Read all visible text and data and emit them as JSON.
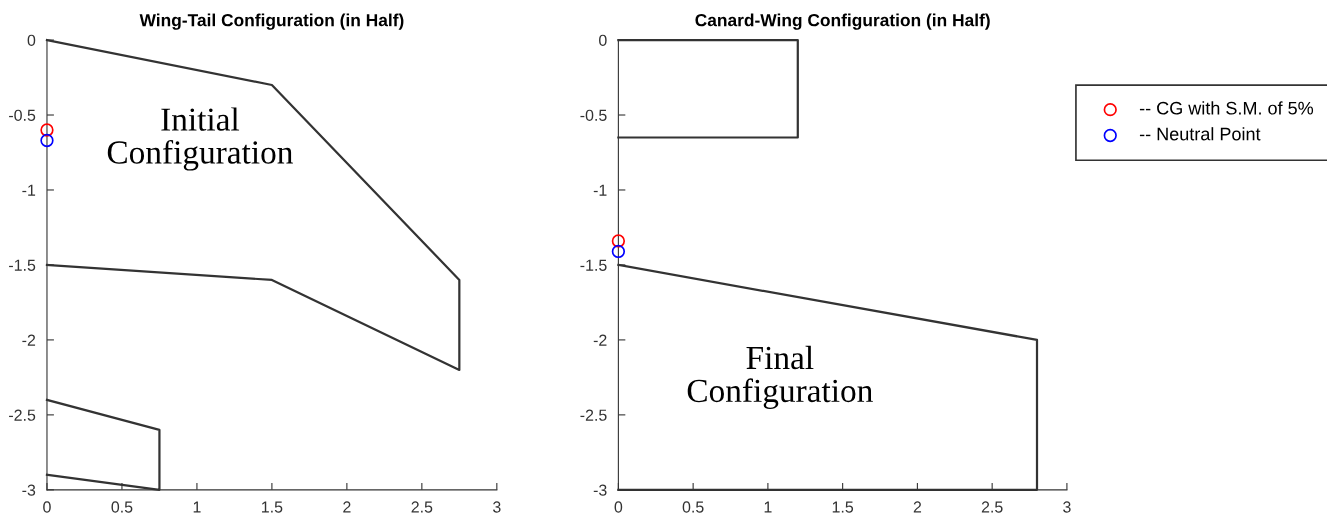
{
  "chart_data": [
    {
      "type": "line",
      "title": "Wing-Tail Configuration (in Half)",
      "xlim": [
        0,
        3
      ],
      "ylim": [
        -3,
        0
      ],
      "xticks": [
        0,
        0.5,
        1,
        1.5,
        2,
        2.5,
        3
      ],
      "yticks": [
        -3,
        -2.5,
        -2,
        -1.5,
        -1,
        -0.5,
        0
      ],
      "grid": false,
      "legend": false,
      "annotations": [
        "Initial\nConfiguration"
      ],
      "series": [
        {
          "color": "#333333",
          "x": [
            0,
            1.5,
            2.75,
            2.75,
            1.5,
            0
          ],
          "values": [
            0,
            -0.3,
            -1.6,
            -2.2,
            -1.6,
            -1.5
          ]
        },
        {
          "color": "#333333",
          "x": [
            0,
            0.75,
            0.75,
            0
          ],
          "values": [
            -2.4,
            -2.6,
            -3.0,
            -2.9
          ]
        },
        {
          "type": "scatter",
          "color": "#ff0000",
          "marker": "circle",
          "x": [
            0
          ],
          "values": [
            -0.6
          ]
        },
        {
          "type": "scatter",
          "color": "#0000ff",
          "marker": "circle",
          "x": [
            0
          ],
          "values": [
            -0.67
          ]
        }
      ]
    },
    {
      "type": "line",
      "title": "Canard-Wing Configuration (in Half)",
      "xlim": [
        0,
        3
      ],
      "ylim": [
        -3,
        0
      ],
      "xticks": [
        0,
        0.5,
        1,
        1.5,
        2,
        2.5,
        3
      ],
      "yticks": [
        -3,
        -2.5,
        -2,
        -1.5,
        -1,
        -0.5,
        0
      ],
      "grid": false,
      "legend": "top right",
      "annotations": [
        "Final\nConfiguration"
      ],
      "series": [
        {
          "color": "#333333",
          "x": [
            0,
            1.2,
            1.2,
            0
          ],
          "values": [
            0,
            0,
            -0.65,
            -0.65
          ]
        },
        {
          "color": "#333333",
          "x": [
            0,
            2.8,
            2.8,
            0
          ],
          "values": [
            -1.5,
            -2.0,
            -3.0,
            -3.0
          ]
        },
        {
          "type": "scatter",
          "name": "-- CG with S.M. of 5%",
          "color": "#ff0000",
          "marker": "circle",
          "x": [
            0
          ],
          "values": [
            -1.34
          ]
        },
        {
          "type": "scatter",
          "name": "-- Neutral Point",
          "color": "#0000ff",
          "marker": "circle",
          "x": [
            0
          ],
          "values": [
            -1.41
          ]
        }
      ]
    }
  ]
}
